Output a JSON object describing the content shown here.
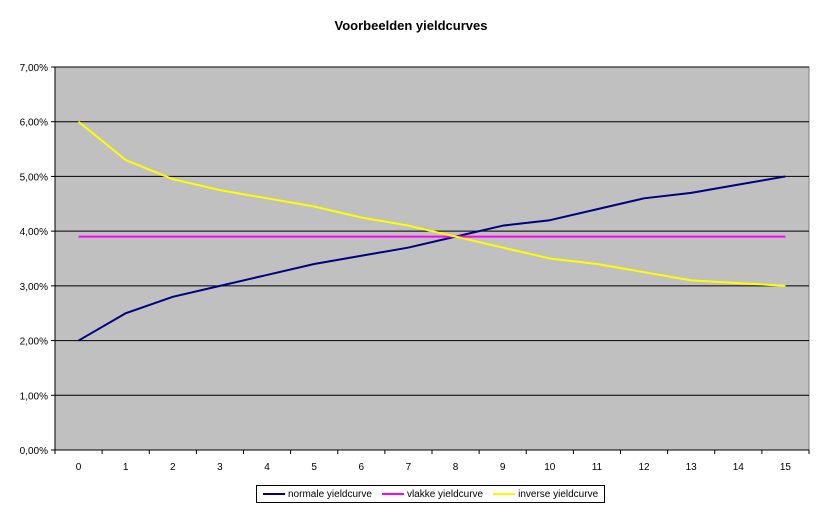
{
  "chart_data": {
    "type": "line",
    "title": "Voorbeelden yieldcurves",
    "x": [
      0,
      1,
      2,
      3,
      4,
      5,
      6,
      7,
      8,
      9,
      10,
      11,
      12,
      13,
      14,
      15
    ],
    "ylim": [
      0,
      7
    ],
    "yticks": [
      0,
      1,
      2,
      3,
      4,
      5,
      6,
      7
    ],
    "ytick_labels": [
      "0,00%",
      "1,00%",
      "2,00%",
      "3,00%",
      "4,00%",
      "5,00%",
      "6,00%",
      "7,00%"
    ],
    "xtick_labels": [
      "0",
      "1",
      "2",
      "3",
      "4",
      "5",
      "6",
      "7",
      "8",
      "9",
      "10",
      "11",
      "12",
      "13",
      "14",
      "15"
    ],
    "grid": "horizontal",
    "plot_background": "#C0C0C0",
    "legend_position": "bottom",
    "series": [
      {
        "name": "normale yieldcurve",
        "color": "#000080",
        "values": [
          2.0,
          2.5,
          2.8,
          3.0,
          3.2,
          3.4,
          3.55,
          3.7,
          3.9,
          4.1,
          4.2,
          4.4,
          4.6,
          4.7,
          4.85,
          5.0
        ]
      },
      {
        "name": "vlakke yieldcurve",
        "color": "#FF00FF",
        "values": [
          3.9,
          3.9,
          3.9,
          3.9,
          3.9,
          3.9,
          3.9,
          3.9,
          3.9,
          3.9,
          3.9,
          3.9,
          3.9,
          3.9,
          3.9,
          3.9
        ]
      },
      {
        "name": "inverse yieldcurve",
        "color": "#FFFF00",
        "values": [
          6.0,
          5.3,
          4.95,
          4.75,
          4.6,
          4.45,
          4.25,
          4.1,
          3.9,
          3.7,
          3.5,
          3.4,
          3.25,
          3.1,
          3.05,
          3.0
        ]
      }
    ]
  }
}
